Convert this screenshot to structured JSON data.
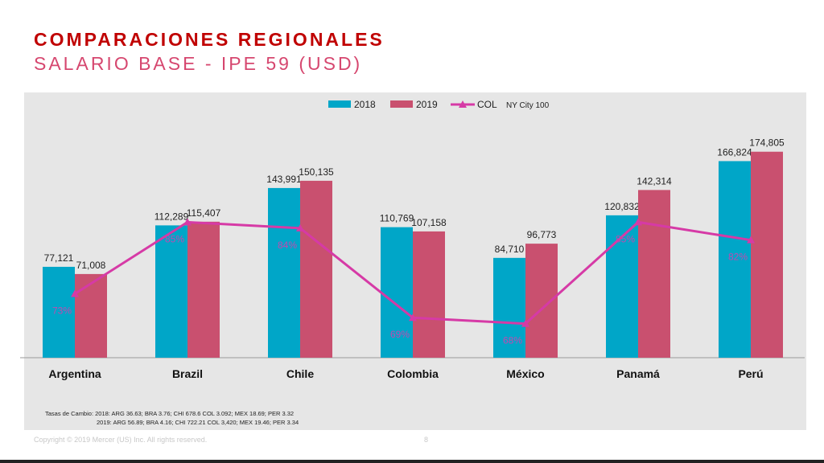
{
  "header": {
    "title": "COMPARACIONES REGIONALES",
    "subtitle": "SALARIO BASE - IPE 59 (USD)"
  },
  "chart_data": {
    "type": "bar",
    "categories": [
      "Argentina",
      "Brazil",
      "Chile",
      "Colombia",
      "México",
      "Panamá",
      "Perú"
    ],
    "series": [
      {
        "name": "2018",
        "type": "bar",
        "color": "#00a6c8",
        "values": [
          77121,
          112289,
          143991,
          110769,
          84710,
          120832,
          166824
        ],
        "labels": [
          "77,121",
          "112,289",
          "143,991",
          "110,769",
          "84,710",
          "120,832",
          "166,824"
        ]
      },
      {
        "name": "2019",
        "type": "bar",
        "color": "#c9506f",
        "values": [
          71008,
          115407,
          150135,
          107158,
          96773,
          142314,
          174805
        ],
        "labels": [
          "71,008",
          "115,407",
          "150,135",
          "107,158",
          "96,773",
          "142,314",
          "174,805"
        ]
      },
      {
        "name": "COL",
        "type": "line",
        "axis": "secondary",
        "color": "#d63aa6",
        "values": [
          73,
          85,
          84,
          69,
          68,
          85,
          82
        ],
        "labels": [
          "73%",
          "85%",
          "84%",
          "69%",
          "68%",
          "85%",
          "82%"
        ]
      }
    ],
    "legend_note": "NY City 100",
    "legend_position": "top",
    "ylim": [
      0,
      191000
    ],
    "y2lim": [
      62.3,
      100
    ],
    "grid": false
  },
  "notes": {
    "line1": "Tasas de Cambio: 2018: ARG 36.63; BRA 3.76; CHI 678.6 COL 3.092; MEX 18.69; PER 3.32",
    "line2": "2019: ARG 56.89; BRA 4.16; CHI 722.21 COL 3,420; MEX 19.46; PER 3.34"
  },
  "footer": {
    "copyright": "Copyright © 2019 Mercer (US) Inc. All rights reserved.",
    "page": "8"
  }
}
